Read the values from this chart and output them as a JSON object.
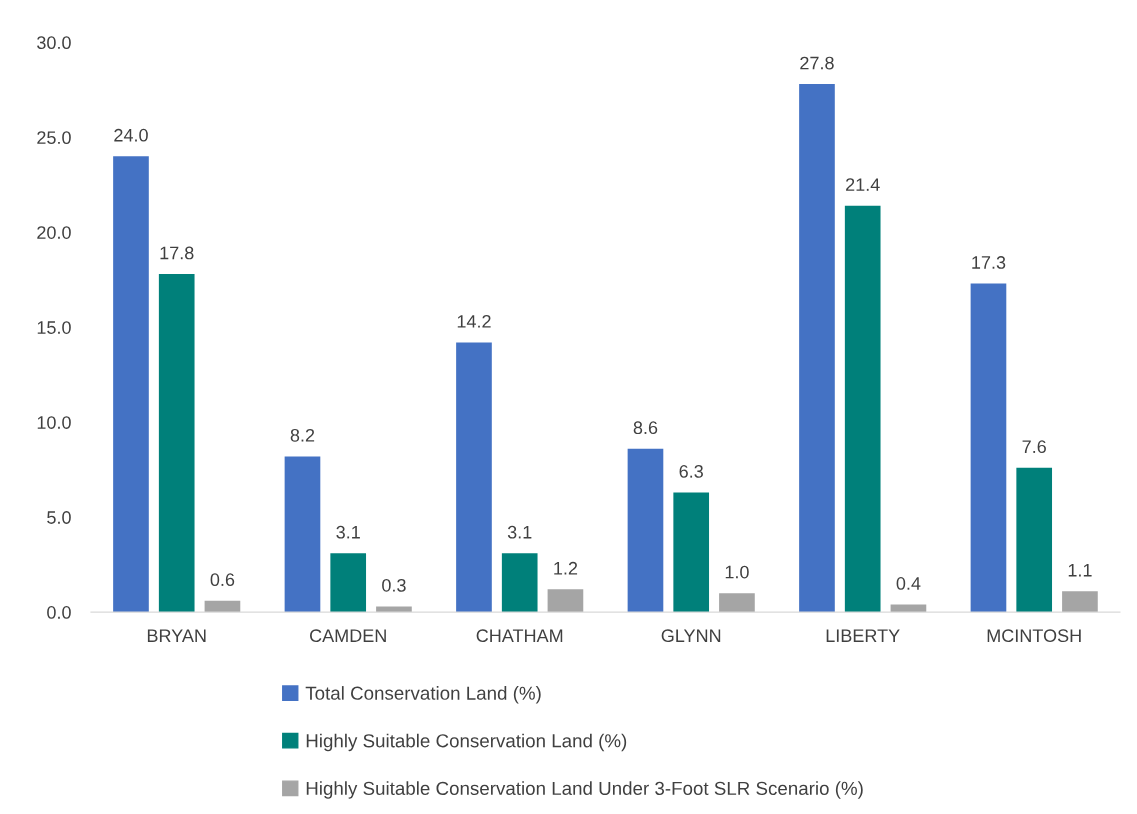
{
  "chart_data": {
    "type": "bar",
    "categories": [
      "BRYAN",
      "CAMDEN",
      "CHATHAM",
      "GLYNN",
      "LIBERTY",
      "MCINTOSH"
    ],
    "series": [
      {
        "name": "Total Conservation Land (%)",
        "color": "#4472c4",
        "values": [
          24.0,
          8.2,
          14.2,
          8.6,
          27.8,
          17.3
        ],
        "value_labels": [
          "24.0",
          "8.2",
          "14.2",
          "8.6",
          "27.8",
          "17.3"
        ]
      },
      {
        "name": "Highly Suitable Conservation Land (%)",
        "color": "#00807a",
        "values": [
          17.8,
          3.1,
          3.1,
          6.3,
          21.4,
          7.6
        ],
        "value_labels": [
          "17.8",
          "3.1",
          "3.1",
          "6.3",
          "21.4",
          "7.6"
        ]
      },
      {
        "name": "Highly Suitable Conservation Land Under 3-Foot SLR Scenario (%)",
        "color": "#a5a5a5",
        "values": [
          0.6,
          0.3,
          1.2,
          1.0,
          0.4,
          1.1
        ],
        "value_labels": [
          "0.6",
          "0.3",
          "1.2",
          "1.0",
          "0.4",
          "1.1"
        ]
      }
    ],
    "ylim": [
      0,
      30
    ],
    "yticks": [
      {
        "value": 0,
        "label": "0.0"
      },
      {
        "value": 5,
        "label": "5.0"
      },
      {
        "value": 10,
        "label": "10.0"
      },
      {
        "value": 15,
        "label": "15.0"
      },
      {
        "value": 20,
        "label": "20.0"
      },
      {
        "value": 25,
        "label": "25.0"
      },
      {
        "value": 30,
        "label": "30.0"
      }
    ],
    "grid": false,
    "legend": "bottom"
  }
}
